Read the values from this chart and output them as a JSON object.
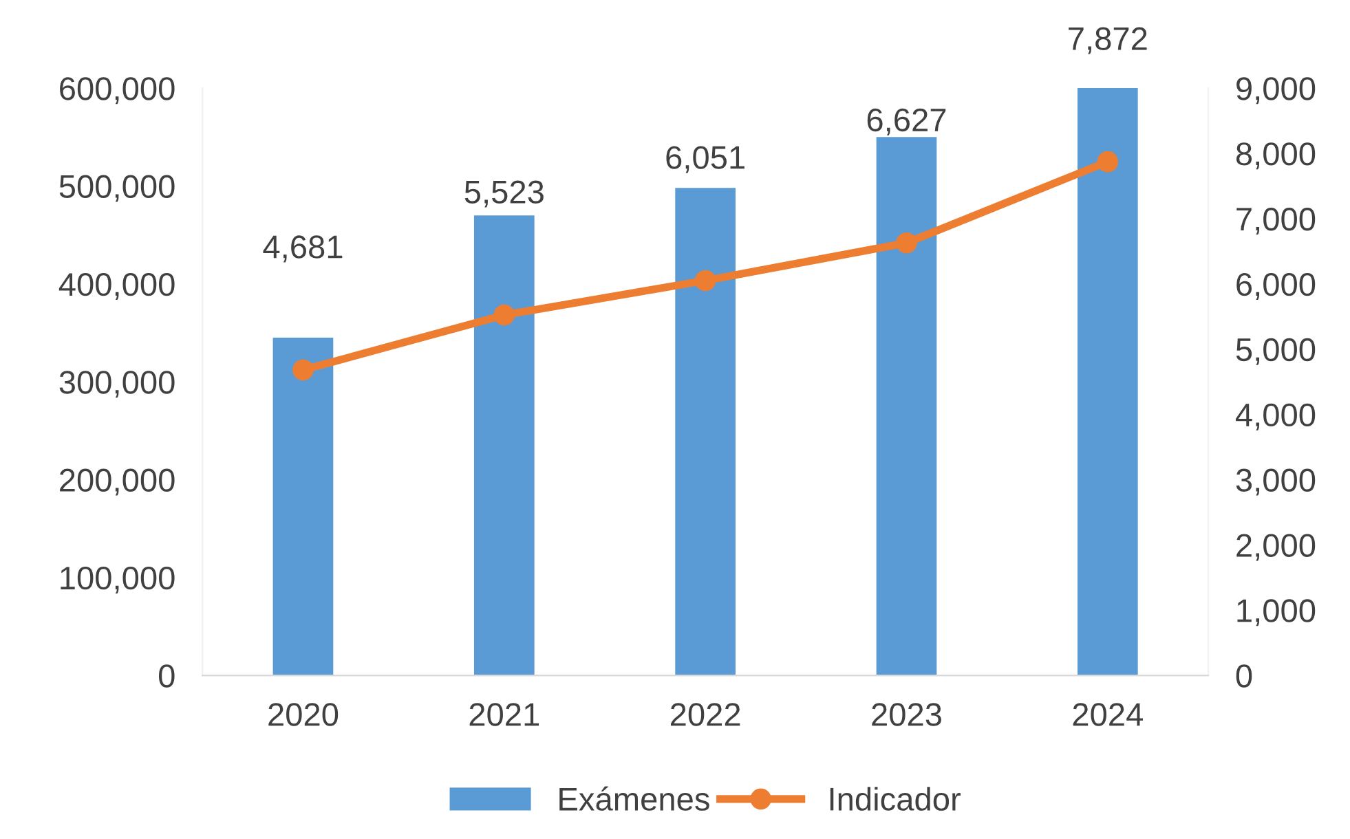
{
  "chart_data": {
    "type": "bar",
    "categories": [
      "2020",
      "2021",
      "2022",
      "2023",
      "2024"
    ],
    "series": [
      {
        "name": "Exámenes",
        "color": "#5b9bd5",
        "values": [
          345000,
          470000,
          498000,
          550000,
          600000
        ]
      },
      {
        "name": "Indicador",
        "type": "line",
        "axis": "y2",
        "color": "#ed7d31",
        "marker": "circle",
        "values": [
          4681,
          5523,
          6051,
          6627,
          7872
        ],
        "value_labels": [
          "4,681",
          "5,523",
          "6,051",
          "6,627",
          "7,872"
        ]
      }
    ],
    "ylim": [
      0,
      600000
    ],
    "yticks": [
      {
        "value": 0,
        "label": "0"
      },
      {
        "value": 100000,
        "label": "100,000"
      },
      {
        "value": 200000,
        "label": "200,000"
      },
      {
        "value": 300000,
        "label": "300,000"
      },
      {
        "value": 400000,
        "label": "400,000"
      },
      {
        "value": 500000,
        "label": "500,000"
      },
      {
        "value": 600000,
        "label": "600,000"
      }
    ],
    "y2lim": [
      0,
      9000
    ],
    "y2ticks": [
      {
        "value": 0,
        "label": "0"
      },
      {
        "value": 1000,
        "label": "1,000"
      },
      {
        "value": 2000,
        "label": "2,000"
      },
      {
        "value": 3000,
        "label": "3,000"
      },
      {
        "value": 4000,
        "label": "4,000"
      },
      {
        "value": 5000,
        "label": "5,000"
      },
      {
        "value": 6000,
        "label": "6,000"
      },
      {
        "value": 7000,
        "label": "7,000"
      },
      {
        "value": 8000,
        "label": "8,000"
      },
      {
        "value": 9000,
        "label": "9,000"
      }
    ],
    "grid": false,
    "legend": "bottom"
  }
}
